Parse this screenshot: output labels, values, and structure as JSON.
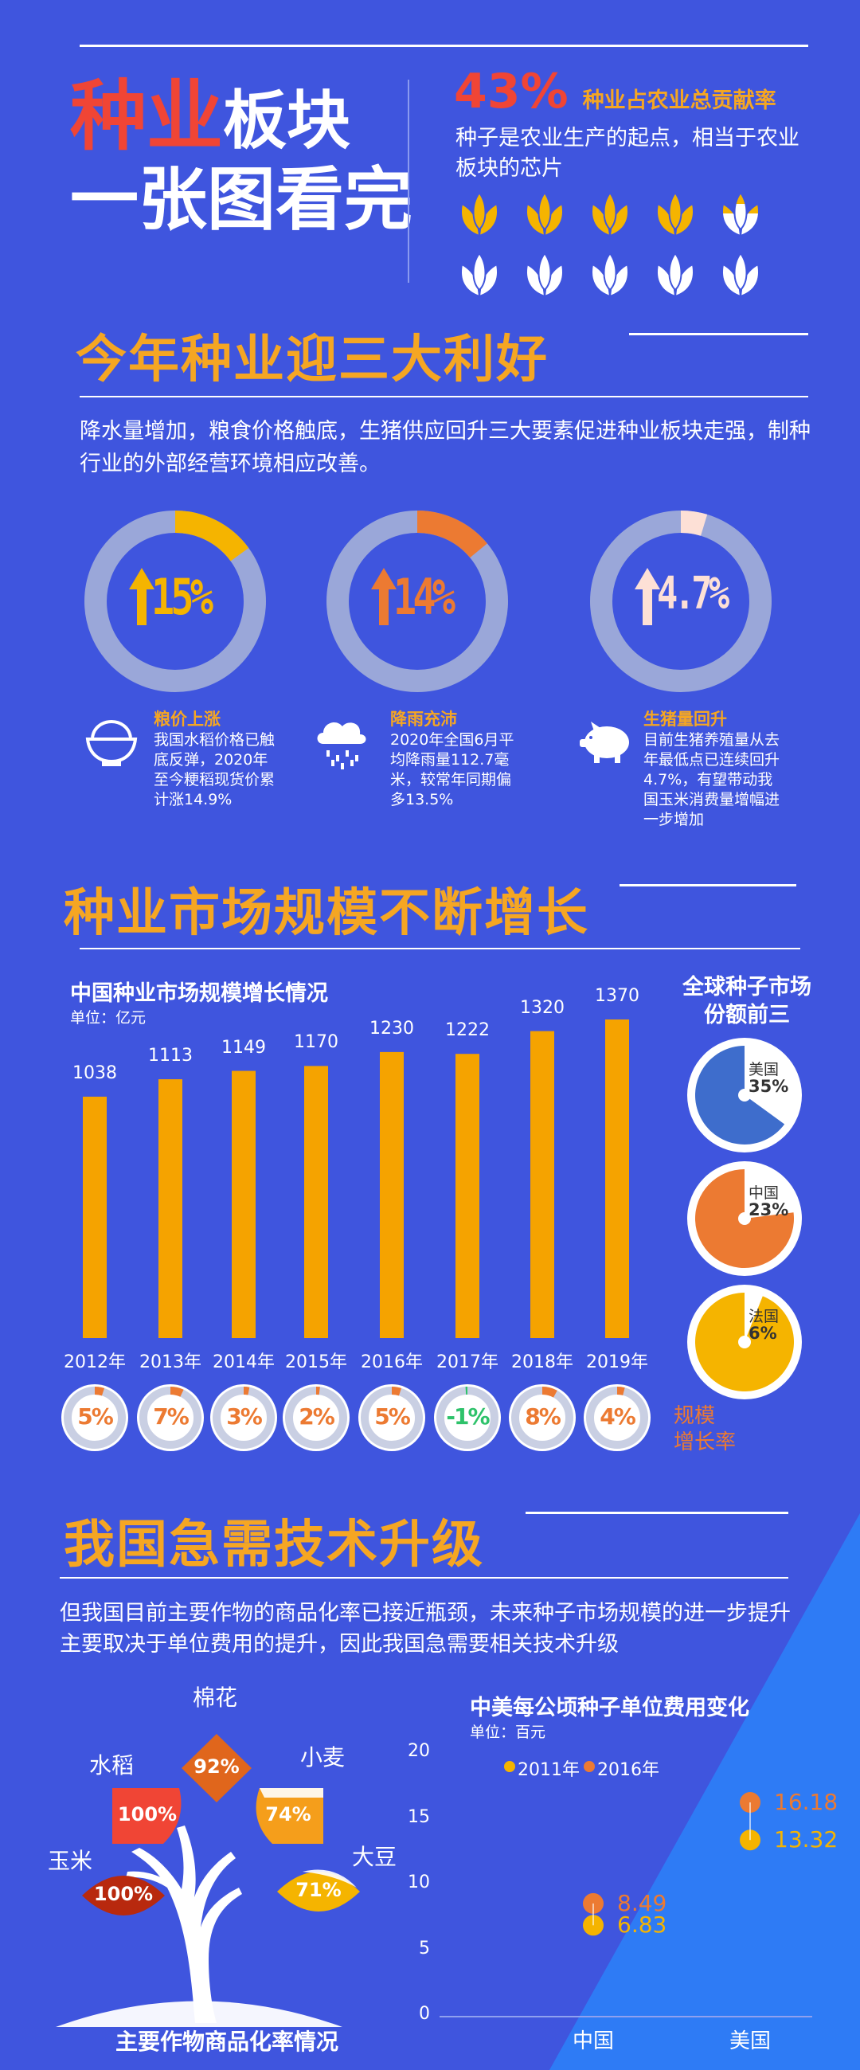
{
  "header": {
    "title_red": "种业",
    "title_rest1": "板块",
    "title_line2": "一张图看完",
    "pct": "43%",
    "pct_label": "种业占农业总贡献率",
    "desc": "种子是农业生产的起点，相当于农业板块的芯片",
    "pct_value": 43,
    "icon_count": 10,
    "icon_name": "seed-icon"
  },
  "section1": {
    "title": "今年种业迎三大利好",
    "desc": "降水量增加，粮食价格触底，生猪供应回升三大要素促进种业板块走强，制种行业的外部经营环境相应改善。",
    "rings": [
      {
        "value": "15%",
        "pct": 15,
        "color": "#f5b400",
        "icon": "rice-bowl-icon",
        "head": "粮价上涨",
        "body": "我国水稻价格已触底反弹，2020年至今粳稻现货价累计涨14.9%"
      },
      {
        "value": "14%",
        "pct": 14,
        "color": "#ec7a32",
        "icon": "rain-cloud-icon",
        "head": "降雨充沛",
        "body": "2020年全国6月平均降雨量112.7毫米，较常年同期偏多13.5%"
      },
      {
        "value": "4.7%",
        "pct": 4.7,
        "color": "#fde0d6",
        "icon": "pig-icon",
        "head": "生猪量回升",
        "body": "目前生猪养殖量从去年最低点已连续回升4.7%，有望带动我国玉米消费量增幅进一步增加"
      }
    ]
  },
  "section2": {
    "title": "种业市场规模不断增长",
    "chart_title": "中国种业市场规模增长情况",
    "unit": "单位：亿元",
    "growth_label": "规模\n增长率",
    "global_title": "全球种子市场\n份额前三",
    "shares": [
      {
        "country": "美国",
        "pct": "35%",
        "value": 35,
        "color": "#3e6dcc"
      },
      {
        "country": "中国",
        "pct": "23%",
        "value": 23,
        "color": "#ec7a32"
      },
      {
        "country": "法国",
        "pct": "6%",
        "value": 6,
        "color": "#f5b400"
      }
    ]
  },
  "chart_data": [
    {
      "type": "bar",
      "title": "中国种业市场规模增长情况",
      "ylabel": "单位：亿元",
      "categories": [
        "2012年",
        "2013年",
        "2014年",
        "2015年",
        "2016年",
        "2017年",
        "2018年",
        "2019年"
      ],
      "values": [
        1038,
        1113,
        1149,
        1170,
        1230,
        1222,
        1320,
        1370
      ],
      "growth": [
        "5%",
        "7%",
        "3%",
        "2%",
        "5%",
        "-1%",
        "8%",
        "4%"
      ],
      "growth_values": [
        5,
        7,
        3,
        2,
        5,
        -1,
        8,
        4
      ]
    },
    {
      "type": "scatter",
      "title": "中美每公顷种子单位费用变化",
      "ylabel": "单位：百元",
      "categories": [
        "中国",
        "美国"
      ],
      "ylim": [
        0,
        20
      ],
      "yticks": [
        "0",
        "5",
        "10",
        "15",
        "20"
      ],
      "series": [
        {
          "name": "2011年",
          "color": "#f5b400",
          "values": [
            6.83,
            13.32
          ],
          "labels": [
            "6.83",
            "13.32"
          ]
        },
        {
          "name": "2016年",
          "color": "#ec7a32",
          "values": [
            8.49,
            16.18
          ],
          "labels": [
            "8.49",
            "16.18"
          ]
        }
      ]
    }
  ],
  "section3": {
    "title": "我国急需技术升级",
    "desc": "但我国目前主要作物的商品化率已接近瓶颈，未来种子市场规模的进一步提升主要取决于单位费用的提升，因此我国急需要相关技术升级",
    "tree_title": "主要作物商品化率情况",
    "crops": [
      {
        "name": "棉花",
        "pct": "92%",
        "color": "#e0661c"
      },
      {
        "name": "水稻",
        "pct": "100%",
        "color": "#f04535"
      },
      {
        "name": "小麦",
        "pct": "74%",
        "color": "#f59e1b"
      },
      {
        "name": "玉米",
        "pct": "100%",
        "color": "#b8290e"
      },
      {
        "name": "大豆",
        "pct": "71%",
        "color": "#f5b400"
      }
    ]
  }
}
